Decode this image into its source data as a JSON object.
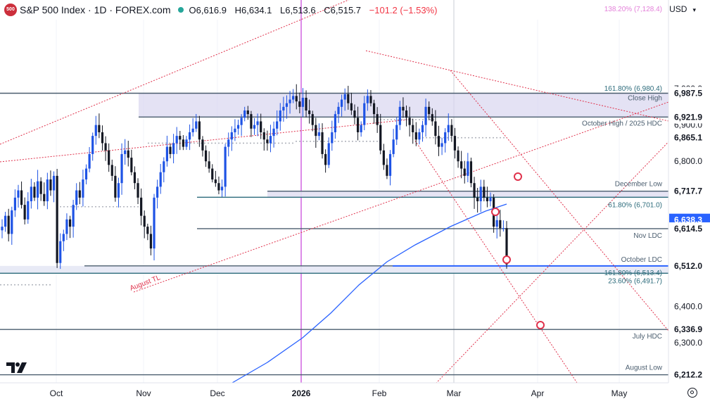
{
  "header": {
    "logo_text": "500",
    "title": "S&P 500 Index · 1D · FOREX.com",
    "open": "O6,616.9",
    "high": "H6,634.1",
    "low": "L6,513.6",
    "close": "C6,515.7",
    "change": "−101.2 (−1.53%)"
  },
  "currency": {
    "label": "USD"
  },
  "colors": {
    "up": "#1e53e5",
    "down": "#131722",
    "level_line": "#4a5d6e",
    "channel": "#e0314b",
    "ma": "#2962ff",
    "zone": "#d8d5f0",
    "fib_pink": "#e37fd9",
    "fib_teal": "#2c6b7b",
    "today_line": "#c43ed9"
  },
  "chart_data": {
    "type": "candlestick",
    "title": "S&P 500 Index · 1D · FOREX.com",
    "y_range": [
      6190,
      7190
    ],
    "y_ticks": [
      6300,
      6400,
      6800,
      6900,
      7000
    ],
    "x_ticks": [
      "Oct",
      "Nov",
      "Dec",
      "2026",
      "Feb",
      "Mar",
      "Apr",
      "May"
    ],
    "levels": [
      {
        "label": "Close High",
        "value": 6987.5
      },
      {
        "label": "October High / 2025 HDC",
        "value": 6921.9
      },
      {
        "label": "December Low",
        "value": 6717.7
      },
      {
        "label": "Nov LDC",
        "value": 6614.5
      },
      {
        "label": "October LDC",
        "value": 6512.0
      },
      {
        "label": "July HDC",
        "value": 6336.9
      },
      {
        "label": "August Low",
        "value": 6212.2
      }
    ],
    "fib_levels": [
      {
        "label": "138.20% (7,128.4)",
        "value": 7128.4
      },
      {
        "label": "161.80% (6,980.4)",
        "value": 6980.4
      },
      {
        "label": "61.80% (6,701.0)",
        "value": 6701.0
      },
      {
        "label": "161.80% (6,513.4)",
        "value": 6513.4
      },
      {
        "label": "23.60% (6,491.7)",
        "value": 6491.7
      }
    ],
    "price_labels": [
      {
        "value": 6987.5,
        "text": "6,987.5"
      },
      {
        "value": 6921.9,
        "text": "6,921.9"
      },
      {
        "value": 6865.1,
        "text": "6,865.1"
      },
      {
        "value": 6717.7,
        "text": "6,717.7"
      },
      {
        "value": 6638.3,
        "text": "6,638.3",
        "highlight": true
      },
      {
        "value": 6614.5,
        "text": "6,614.5"
      },
      {
        "value": 6512.0,
        "text": "6,512.0"
      },
      {
        "value": 6336.9,
        "text": "6,336.9"
      },
      {
        "value": 6212.2,
        "text": "6,212.2"
      }
    ],
    "annotations": [
      "August TL"
    ],
    "close_series": [
      6620,
      6650,
      6600,
      6665,
      6700,
      6720,
      6680,
      6640,
      6690,
      6730,
      6700,
      6745,
      6710,
      6690,
      6750,
      6720,
      6760,
      6520,
      6580,
      6600,
      6640,
      6620,
      6680,
      6720,
      6700,
      6750,
      6780,
      6820,
      6870,
      6900,
      6880,
      6850,
      6830,
      6790,
      6760,
      6700,
      6740,
      6820,
      6830,
      6810,
      6770,
      6740,
      6700,
      6650,
      6620,
      6600,
      6560,
      6700,
      6730,
      6770,
      6800,
      6840,
      6820,
      6850,
      6870,
      6860,
      6840,
      6860,
      6880,
      6890,
      6910,
      6860,
      6830,
      6800,
      6780,
      6750,
      6740,
      6720,
      6730,
      6840,
      6860,
      6880,
      6890,
      6900,
      6920,
      6940,
      6930,
      6890,
      6900,
      6910,
      6880,
      6860,
      6850,
      6870,
      6890,
      6910,
      6940,
      6950,
      6960,
      6970,
      6980,
      6965,
      6950,
      6975,
      6940,
      6930,
      6900,
      6870,
      6880,
      6820,
      6790,
      6850,
      6880,
      6930,
      6950,
      6970,
      6985,
      6960,
      6940,
      6920,
      6880,
      6900,
      6960,
      6980,
      6960,
      6930,
      6900,
      6830,
      6790,
      6760,
      6820,
      6860,
      6900,
      6950,
      6940,
      6920,
      6900,
      6880,
      6860,
      6880,
      6900,
      6950,
      6930,
      6910,
      6870,
      6840,
      6850,
      6880,
      6900,
      6870,
      6830,
      6800,
      6780,
      6760,
      6800,
      6740,
      6700,
      6690,
      6730,
      6700,
      6690,
      6700,
      6620,
      6638,
      6616,
      6616,
      6516
    ]
  }
}
